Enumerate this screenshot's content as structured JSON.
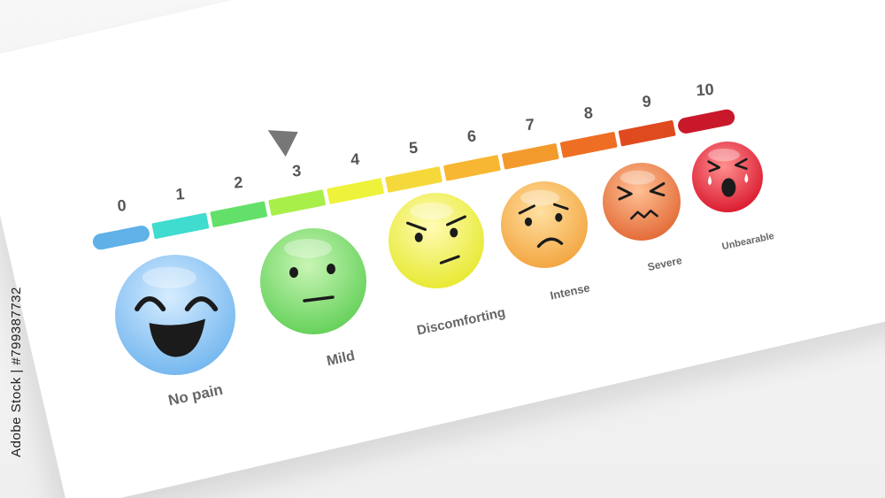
{
  "scale": {
    "numbers": [
      "0",
      "1",
      "2",
      "3",
      "4",
      "5",
      "6",
      "7",
      "8",
      "9",
      "10"
    ],
    "segment_colors": [
      "#5fb1e8",
      "#3fdccf",
      "#63e06a",
      "#a9ef4a",
      "#eef23a",
      "#f5d93a",
      "#f7b733",
      "#f39a2c",
      "#ee6f24",
      "#e04a1f",
      "#c9182a"
    ],
    "pointer_value": 3,
    "pointer_color": "#777777"
  },
  "faces": [
    {
      "label": "No pain",
      "color_top": "#d6ecff",
      "color_bottom": "#6fb4ee",
      "expression": "laughing-face-icon"
    },
    {
      "label": "Mild",
      "color_top": "#c9f5b5",
      "color_bottom": "#5fcf55",
      "expression": "neutral-face-icon"
    },
    {
      "label": "Discomforting",
      "color_top": "#fffbb5",
      "color_bottom": "#e6e82a",
      "expression": "annoyed-face-icon"
    },
    {
      "label": "Intense",
      "color_top": "#ffe0a0",
      "color_bottom": "#f2a23b",
      "expression": "worried-face-icon"
    },
    {
      "label": "Severe",
      "color_top": "#ffc196",
      "color_bottom": "#e16631",
      "expression": "squinting-face-icon"
    },
    {
      "label": "Unbearable",
      "color_top": "#ff8f8f",
      "color_bottom": "#d8142a",
      "expression": "crying-face-icon"
    }
  ],
  "watermark": {
    "stock_id": "#799387732",
    "brand": "Adobe Stock |"
  }
}
